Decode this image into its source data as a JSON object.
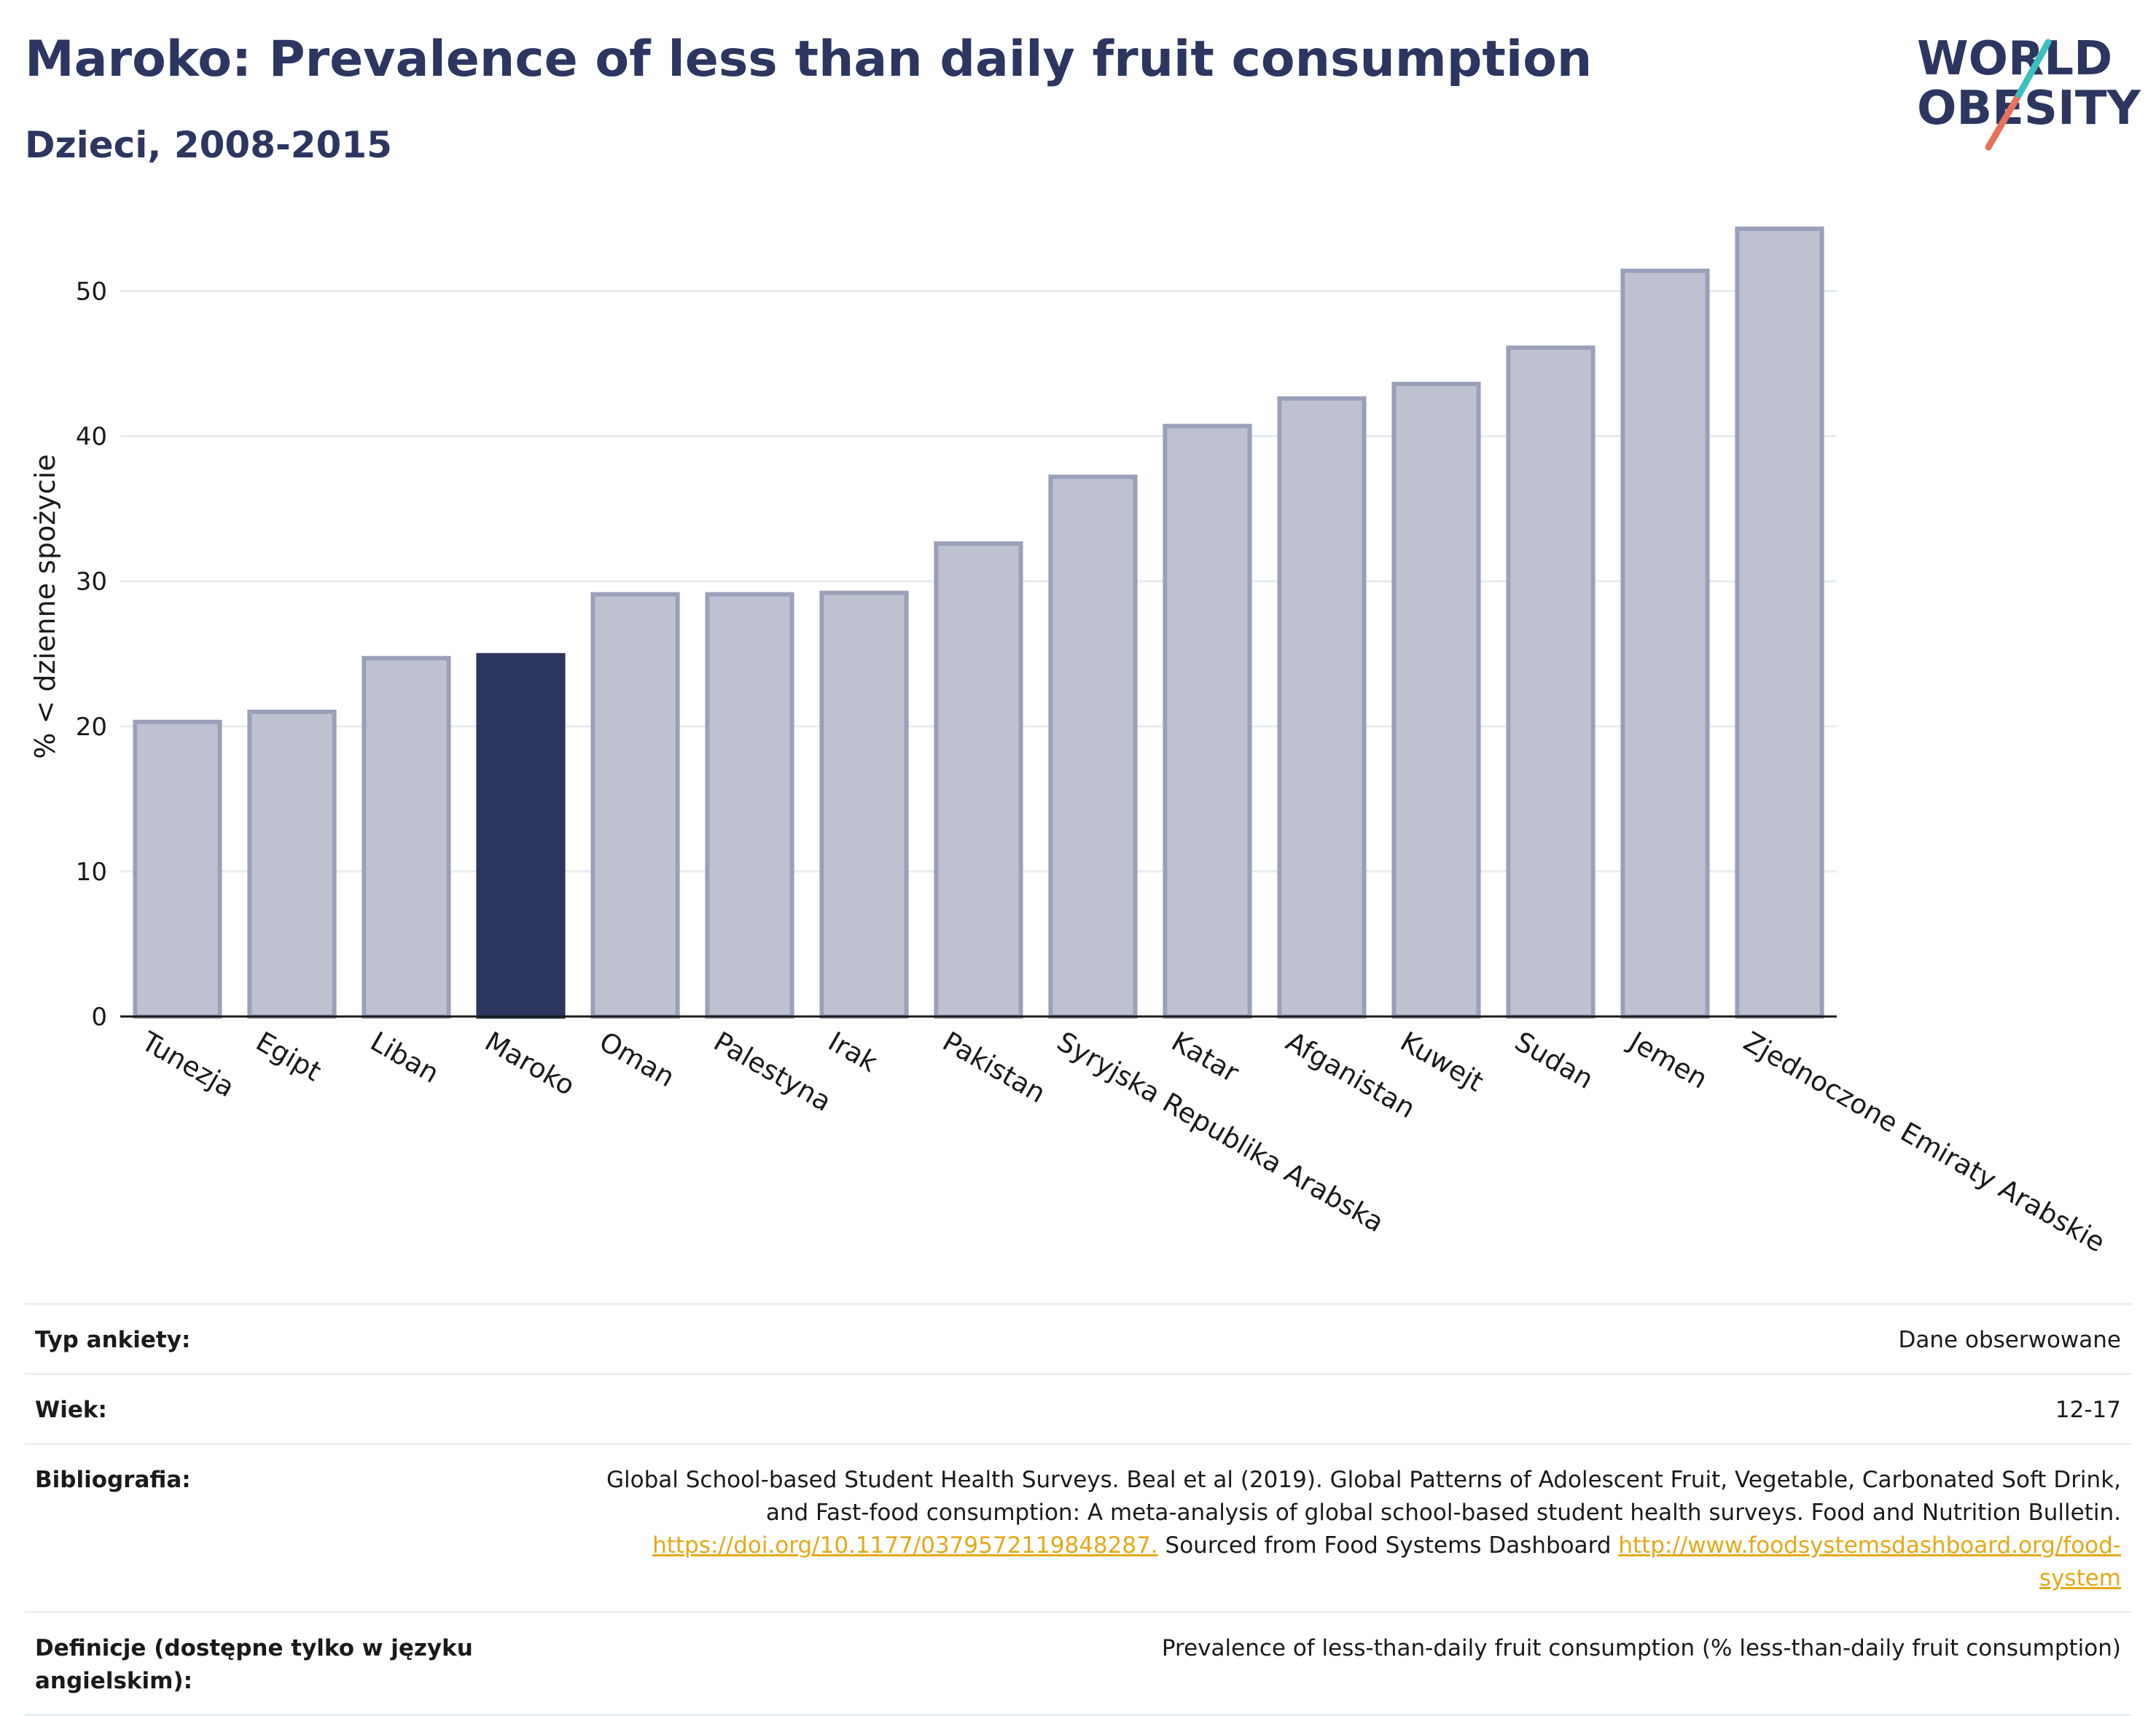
{
  "header": {
    "title": "Maroko: Prevalence of less than daily fruit consumption",
    "subtitle": "Dzieci, 2008-2015"
  },
  "logo": {
    "line1": "WORLD",
    "line2": "OBESITY"
  },
  "colors": {
    "bar_default": "#bec2d0",
    "bar_default_stroke": "#9aa0b8",
    "bar_highlight": "#2b355f",
    "title": "#2d3561",
    "link": "#e6a817",
    "grid": "#e8ecf0"
  },
  "chart_data": {
    "type": "bar",
    "title": "Maroko: Prevalence of less than daily fruit consumption",
    "subtitle": "Dzieci, 2008-2015",
    "ylabel": "% < dzienne spożycie",
    "xlabel": "",
    "ylim": [
      0,
      55
    ],
    "yticks": [
      0,
      10,
      20,
      30,
      40,
      50
    ],
    "grid": true,
    "highlight": "Maroko",
    "categories": [
      "Tunezja",
      "Egipt",
      "Liban",
      "Maroko",
      "Oman",
      "Palestyna",
      "Irak",
      "Pakistan",
      "Syryjska Republika Arabska",
      "Katar",
      "Afganistan",
      "Kuwejt",
      "Sudan",
      "Jemen",
      "Zjednoczone Emiraty Arabskie"
    ],
    "values": [
      20.3,
      21.0,
      24.7,
      24.9,
      29.1,
      29.1,
      29.2,
      32.6,
      37.2,
      40.7,
      42.6,
      43.6,
      46.1,
      51.4,
      54.3
    ]
  },
  "info": {
    "rows": [
      {
        "key": "Typ ankiety:",
        "value": "Dane obserwowane"
      },
      {
        "key": "Wiek:",
        "value": "12-17"
      },
      {
        "key": "Bibliografia:",
        "value_line1": "Global School-based Student Health Surveys. Beal et al (2019). Global Patterns of Adolescent Fruit, Vegetable, Carbonated Soft Drink,",
        "value_line2": "and Fast-food consumption: A meta-analysis of global school-based student health surveys. Food and Nutrition Bulletin.",
        "link1": "https://doi.org/10.1177/0379572119848287.",
        "mid_text": " Sourced from Food Systems Dashboard ",
        "link2a": "http://www.foodsystemsdashboard.org/food-",
        "link2b": "system"
      },
      {
        "key": "Definicje (dostępne tylko w języku angielskim):",
        "value": "Prevalence of less-than-daily fruit consumption (% less-than-daily fruit consumption)"
      }
    ]
  }
}
